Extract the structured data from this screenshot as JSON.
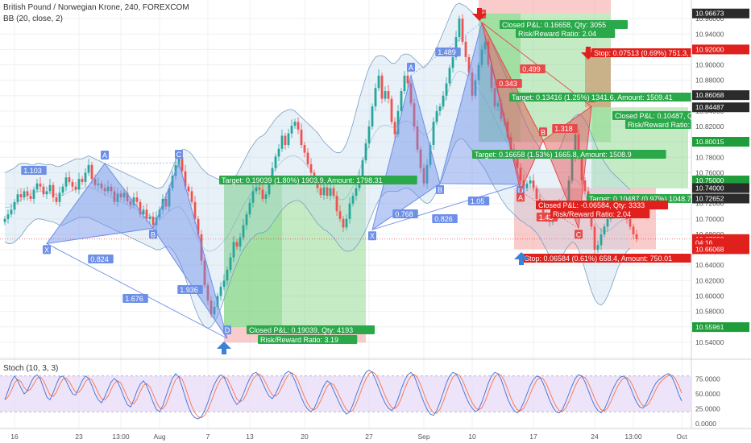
{
  "header": {
    "symbol_line": "British Pound / Norwegian Krone, 240, FOREXCOM",
    "indicator_line": "BB (20, close, 2)",
    "stoch_line": "Stoch (10, 3, 3)"
  },
  "colors": {
    "bull": "#26a69a",
    "bear": "#ef5350",
    "pattern_blue": "#6d8fe8",
    "pattern_red": "#e64a4a",
    "bb": "#7a9ec2",
    "stoch_k": "#3d6fd9",
    "stoch_d": "#ff7043",
    "profit": "#7fd37f",
    "loss": "#f28b8b",
    "price_red": "#e0201c",
    "price_green": "#1f9d3a",
    "price_dark": "#2b2b2b",
    "price_blue": "#2b5fa8"
  },
  "chart_data": {
    "type": "line",
    "ylim": [
      10.52,
      10.98
    ],
    "stoch_ylim": [
      0,
      100
    ],
    "price_axis_ticks": [
      "10.96000",
      "10.94000",
      "10.92000",
      "10.90000",
      "10.88000",
      "10.86000",
      "10.84000",
      "10.82000",
      "10.80000",
      "10.78000",
      "10.76000",
      "10.74000",
      "10.72000",
      "10.70000",
      "10.68000",
      "10.66000",
      "10.64000",
      "10.62000",
      "10.60000",
      "10.58000",
      "10.56000",
      "10.54000",
      "10.52000"
    ],
    "price_labels": [
      {
        "value": "10.96673",
        "y": 10.9667,
        "color": "dark"
      },
      {
        "value": "10.92000",
        "y": 10.92,
        "color": "red"
      },
      {
        "value": "10.86068",
        "y": 10.8607,
        "color": "dark"
      },
      {
        "value": "10.84487",
        "y": 10.8449,
        "color": "dark"
      },
      {
        "value": "10.80015",
        "y": 10.8002,
        "color": "green"
      },
      {
        "value": "10.75000",
        "y": 10.75,
        "color": "green"
      },
      {
        "value": "10.74000",
        "y": 10.74,
        "color": "dark"
      },
      {
        "value": "10.72652",
        "y": 10.7265,
        "color": "dark"
      },
      {
        "value": "10.67392",
        "y": 10.6739,
        "color": "red"
      },
      {
        "value": "04:16",
        "y": 10.6692,
        "color": "red"
      },
      {
        "value": "10.66068",
        "y": 10.6607,
        "color": "red"
      },
      {
        "value": "10.55961",
        "y": 10.5596,
        "color": "green"
      }
    ],
    "stoch_ticks": [
      "75.0000",
      "50.0000",
      "25.0000",
      "0.0000"
    ],
    "time_ticks": [
      "16",
      "23",
      "13:00",
      "Aug",
      "7",
      "13",
      "20",
      "27",
      "Sep",
      "10",
      "17",
      "24",
      "13:00",
      "Oct"
    ],
    "time_tick_bars": [
      3,
      23,
      36,
      48,
      63,
      76,
      93,
      113,
      130,
      145,
      164,
      183,
      195,
      210
    ],
    "close": [
      10.7,
      10.706,
      10.712,
      10.722,
      10.732,
      10.728,
      10.736,
      10.73,
      10.726,
      10.738,
      10.746,
      10.742,
      10.732,
      10.736,
      10.744,
      10.728,
      10.722,
      10.734,
      10.742,
      10.754,
      10.748,
      10.742,
      10.738,
      10.752,
      10.748,
      10.76,
      10.77,
      10.752,
      10.744,
      10.746,
      10.74,
      10.736,
      10.742,
      10.736,
      10.722,
      10.733,
      10.728,
      10.734,
      10.723,
      10.718,
      10.728,
      10.722,
      10.706,
      10.712,
      10.7,
      10.703,
      10.692,
      10.702,
      10.712,
      10.726,
      10.716,
      10.74,
      10.756,
      10.77,
      10.78,
      10.762,
      10.742,
      10.736,
      10.722,
      10.7,
      10.68,
      10.646,
      10.614,
      10.594,
      10.576,
      10.586,
      10.6,
      10.612,
      10.62,
      10.634,
      10.65,
      10.67,
      10.664,
      10.676,
      10.692,
      10.706,
      10.721,
      10.736,
      10.741,
      10.738,
      10.726,
      10.732,
      10.75,
      10.766,
      10.781,
      10.791,
      10.808,
      10.796,
      10.811,
      10.821,
      10.826,
      10.816,
      10.796,
      10.786,
      10.771,
      10.76,
      10.75,
      10.74,
      10.731,
      10.741,
      10.73,
      10.74,
      10.73,
      10.71,
      10.7,
      10.689,
      10.7,
      10.72,
      10.73,
      10.74,
      10.756,
      10.776,
      10.798,
      10.82,
      10.846,
      10.87,
      10.886,
      10.856,
      10.866,
      10.856,
      10.826,
      10.81,
      10.84,
      10.866,
      10.886,
      10.876,
      10.85,
      10.82,
      10.79,
      10.766,
      10.746,
      10.77,
      10.796,
      10.826,
      10.84,
      10.846,
      10.86,
      10.876,
      10.896,
      10.91,
      10.936,
      10.96,
      10.93,
      10.91,
      10.89,
      10.86,
      10.88,
      10.9,
      10.92,
      10.93,
      10.9,
      10.87,
      10.846,
      10.85,
      10.83,
      10.826,
      10.806,
      10.79,
      10.778,
      10.766,
      10.75,
      10.74,
      10.746,
      10.75,
      10.74,
      10.726,
      10.716,
      10.706,
      10.7,
      10.696,
      10.71,
      10.72,
      10.716,
      10.706,
      10.72,
      10.75,
      10.78,
      10.81,
      10.78,
      10.75,
      10.736,
      10.71,
      10.69,
      10.66,
      10.666,
      10.68,
      10.69,
      10.7,
      10.706,
      10.71,
      10.716,
      10.72,
      10.71,
      10.7,
      10.69,
      10.68,
      10.674
    ],
    "bb_upper": [
      10.76,
      10.762,
      10.764,
      10.766,
      10.77,
      10.772,
      10.772,
      10.772,
      10.77,
      10.77,
      10.772,
      10.772,
      10.771,
      10.77,
      10.771,
      10.77,
      10.768,
      10.768,
      10.77,
      10.772,
      10.774,
      10.776,
      10.778,
      10.778,
      10.778,
      10.78,
      10.782,
      10.78,
      10.778,
      10.776,
      10.774,
      10.772,
      10.77,
      10.768,
      10.766,
      10.764,
      10.762,
      10.76,
      10.758,
      10.756,
      10.754,
      10.752,
      10.75,
      10.748,
      10.746,
      10.744,
      10.742,
      10.74,
      10.74,
      10.742,
      10.748,
      10.756,
      10.766,
      10.776,
      10.786,
      10.79,
      10.79,
      10.788,
      10.784,
      10.778,
      10.772,
      10.766,
      10.762,
      10.758,
      10.756,
      10.754,
      10.752,
      10.75,
      10.748,
      10.746,
      10.748,
      10.752,
      10.758,
      10.766,
      10.774,
      10.782,
      10.79,
      10.796,
      10.802,
      10.806,
      10.808,
      10.812,
      10.818,
      10.824,
      10.83,
      10.834,
      10.838,
      10.84,
      10.842,
      10.842,
      10.84,
      10.836,
      10.832,
      10.828,
      10.824,
      10.82,
      10.816,
      10.812,
      10.806,
      10.8,
      10.796,
      10.792,
      10.788,
      10.786,
      10.786,
      10.79,
      10.798,
      10.81,
      10.824,
      10.84,
      10.856,
      10.87,
      10.884,
      10.896,
      10.904,
      10.91,
      10.912,
      10.912,
      10.91,
      10.906,
      10.902,
      10.902,
      10.906,
      10.912,
      10.914,
      10.914,
      10.912,
      10.908,
      10.904,
      10.9,
      10.896,
      10.9,
      10.906,
      10.914,
      10.922,
      10.932,
      10.942,
      10.952,
      10.962,
      10.972,
      10.978,
      10.98,
      10.978,
      10.976,
      10.972,
      10.968,
      10.964,
      10.96,
      10.954,
      10.946,
      10.938,
      10.93,
      10.92,
      10.91,
      10.9,
      10.89,
      10.88,
      10.87,
      10.86,
      10.85,
      10.84,
      10.83,
      10.82,
      10.812,
      10.804,
      10.798,
      10.792,
      10.786,
      10.782,
      10.78,
      10.78,
      10.784,
      10.79,
      10.8,
      10.812,
      10.822,
      10.83,
      10.834,
      10.836,
      10.834,
      10.828,
      10.82,
      10.81,
      10.8,
      10.79,
      10.782,
      10.774,
      10.768,
      10.762,
      10.758,
      10.754,
      10.75,
      10.746,
      10.742,
      10.738
    ],
    "bb_lower": [
      10.67,
      10.668,
      10.668,
      10.67,
      10.674,
      10.678,
      10.684,
      10.69,
      10.694,
      10.698,
      10.7,
      10.7,
      10.699,
      10.698,
      10.697,
      10.696,
      10.694,
      10.692,
      10.692,
      10.694,
      10.696,
      10.698,
      10.7,
      10.702,
      10.702,
      10.702,
      10.702,
      10.7,
      10.698,
      10.696,
      10.694,
      10.692,
      10.69,
      10.688,
      10.686,
      10.684,
      10.682,
      10.68,
      10.678,
      10.676,
      10.674,
      10.672,
      10.67,
      10.668,
      10.666,
      10.664,
      10.662,
      10.66,
      10.66,
      10.662,
      10.664,
      10.664,
      10.66,
      10.654,
      10.646,
      10.636,
      10.624,
      10.61,
      10.596,
      10.584,
      10.574,
      10.566,
      10.56,
      10.558,
      10.56,
      10.566,
      10.574,
      10.584,
      10.596,
      10.608,
      10.62,
      10.632,
      10.642,
      10.652,
      10.66,
      10.666,
      10.672,
      10.676,
      10.68,
      10.682,
      10.682,
      10.684,
      10.688,
      10.694,
      10.7,
      10.706,
      10.712,
      10.716,
      10.72,
      10.722,
      10.724,
      10.724,
      10.722,
      10.718,
      10.712,
      10.706,
      10.7,
      10.694,
      10.69,
      10.686,
      10.684,
      10.68,
      10.676,
      10.67,
      10.664,
      10.66,
      10.658,
      10.658,
      10.66,
      10.664,
      10.67,
      10.678,
      10.686,
      10.696,
      10.706,
      10.716,
      10.724,
      10.73,
      10.734,
      10.736,
      10.736,
      10.736,
      10.736,
      10.738,
      10.74,
      10.74,
      10.738,
      10.734,
      10.73,
      10.726,
      10.722,
      10.72,
      10.722,
      10.728,
      10.736,
      10.746,
      10.756,
      10.768,
      10.78,
      10.792,
      10.8,
      10.804,
      10.804,
      10.8,
      10.794,
      10.788,
      10.782,
      10.776,
      10.77,
      10.764,
      10.756,
      10.748,
      10.74,
      10.734,
      10.726,
      10.72,
      10.714,
      10.71,
      10.706,
      10.702,
      10.698,
      10.696,
      10.692,
      10.69,
      10.686,
      10.682,
      10.676,
      10.668,
      10.66,
      10.652,
      10.646,
      10.644,
      10.646,
      10.652,
      10.66,
      10.666,
      10.67,
      10.668,
      10.66,
      10.648,
      10.634,
      10.62,
      10.606,
      10.596,
      10.59,
      10.588,
      10.592,
      10.6,
      10.61,
      10.622,
      10.634,
      10.644,
      10.652,
      10.658,
      10.662
    ],
    "stoch": [
      40,
      55,
      70,
      80,
      72,
      60,
      50,
      55,
      68,
      78,
      82,
      75,
      60,
      45,
      40,
      52,
      66,
      78,
      80,
      72,
      60,
      50,
      48,
      60,
      72,
      80,
      76,
      64,
      50,
      40,
      35,
      45,
      58,
      70,
      76,
      70,
      58,
      44,
      32,
      28,
      40,
      55,
      66,
      72,
      64,
      50,
      36,
      24,
      20,
      30,
      46,
      62,
      76,
      84,
      78,
      62,
      44,
      28,
      16,
      10,
      8,
      12,
      22,
      36,
      52,
      66,
      76,
      82,
      78,
      66,
      52,
      40,
      32,
      38,
      50,
      64,
      76,
      84,
      86,
      80,
      68,
      56,
      46,
      42,
      50,
      62,
      74,
      84,
      88,
      84,
      72,
      58,
      44,
      32,
      24,
      20,
      26,
      38,
      52,
      64,
      72,
      68,
      56,
      44,
      32,
      22,
      16,
      20,
      32,
      48,
      62,
      76,
      86,
      90,
      86,
      74,
      60,
      46,
      34,
      26,
      22,
      28,
      42,
      58,
      72,
      82,
      86,
      80,
      66,
      50,
      36,
      24,
      16,
      14,
      22,
      36,
      52,
      68,
      80,
      86,
      84,
      74,
      60,
      46,
      34,
      26,
      20,
      24,
      36,
      52,
      68,
      80,
      86,
      84,
      74,
      58,
      42,
      30,
      22,
      18,
      24,
      36,
      50,
      64,
      74,
      80,
      78,
      68,
      54,
      40,
      28,
      20,
      18,
      24,
      36,
      50,
      64,
      76,
      82,
      80,
      70,
      56,
      42,
      30,
      22,
      18,
      24,
      36,
      50,
      62,
      72,
      78,
      80,
      74,
      62,
      48,
      36,
      28,
      26,
      34,
      46,
      58,
      68,
      74,
      78,
      82,
      84,
      78,
      66,
      50,
      38
    ]
  },
  "patterns": {
    "left_blue": {
      "vertex_labels": [
        "X",
        "A",
        "B",
        "C",
        "D"
      ],
      "ratios": [
        "1.103",
        "0.824",
        "1.936",
        "1.676"
      ]
    },
    "mid_blue": {
      "vertex_labels": [
        "X",
        "A",
        "B",
        "C",
        "D"
      ],
      "ratios": [
        "1.489",
        "0.768",
        "0.826",
        "1.05"
      ]
    },
    "right_red": {
      "vertex_labels": [
        "X",
        "A",
        "B",
        "C",
        "D"
      ],
      "ratios": [
        "0.499",
        "0.343",
        "1.318",
        "1.43"
      ]
    }
  },
  "trades": {
    "t1_target": "Target: 0.19039 (1.80%) 1903.9, Amount: 1798.31",
    "t1_closed": "Closed P&L: 0.19039, Qty: 4193",
    "t1_rr": "Risk/Reward Ratio: 3.19",
    "t2_closed": "Closed P&L: 0.16658, Qty: 3055",
    "t2_rr": "Risk/Reward Ratio: 2.04",
    "t2_stop": "Stop: 0.07513 (0.69%) 751.3, Amount: 750",
    "t2_target_a": "Target: 0.13416 (1.25%) 1341.6, Amount: 1509.41",
    "t2_target_b": "Target: 0.16658 (1.53%) 1665.8, Amount: 1508.9",
    "t3_closed": "Closed P&L: 0.10487, Qty: 3327",
    "t3_rr": "Risk/Reward Ratio: 1.4",
    "t3_target": "Target: 0.10487 (0.97%) 1048.7, Amount: 1362",
    "t4_closed": "Closed P&L: -0.06584, Qty: 3333",
    "t4_rr": "Risk/Reward Ratio: 2.04",
    "t4_stop": "Stop: 0.06584 (0.61%) 658.4, Amount: 750.01"
  }
}
